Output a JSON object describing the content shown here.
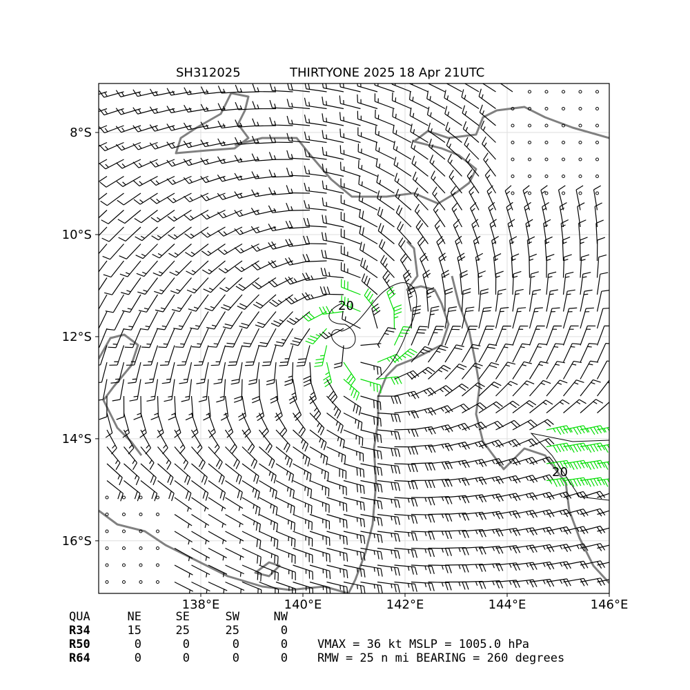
{
  "title_left": "SH312025",
  "title_right": "THIRTYONE 2025 18 Apr 21UTC",
  "map": {
    "xlim": [
      136.0,
      146.0
    ],
    "ylim": [
      -17.03,
      -7.04
    ],
    "xticks": [
      {
        "value": 138,
        "label": "138°E"
      },
      {
        "value": 140,
        "label": "140°E"
      },
      {
        "value": 142,
        "label": "142°E"
      },
      {
        "value": 144,
        "label": "144°E"
      },
      {
        "value": 146,
        "label": "146°E"
      }
    ],
    "yticks": [
      {
        "value": -8,
        "label": "8°S"
      },
      {
        "value": -10,
        "label": "10°S"
      },
      {
        "value": -12,
        "label": "12°S"
      },
      {
        "value": -14,
        "label": "14°S"
      },
      {
        "value": -16,
        "label": "16°S"
      }
    ],
    "contour_labels": [
      "20",
      "20"
    ]
  },
  "table": {
    "header": [
      "QUA",
      "NE",
      "SE",
      "SW",
      "NW"
    ],
    "rows": [
      [
        "R34",
        15,
        25,
        25,
        0
      ],
      [
        "R50",
        0,
        0,
        0,
        0
      ],
      [
        "R64",
        0,
        0,
        0,
        0
      ]
    ]
  },
  "stats": [
    "VMAX =  36 kt MSLP = 1005.0 hPa",
    "RMW =  25 n mi BEARING = 260 degrees"
  ]
}
